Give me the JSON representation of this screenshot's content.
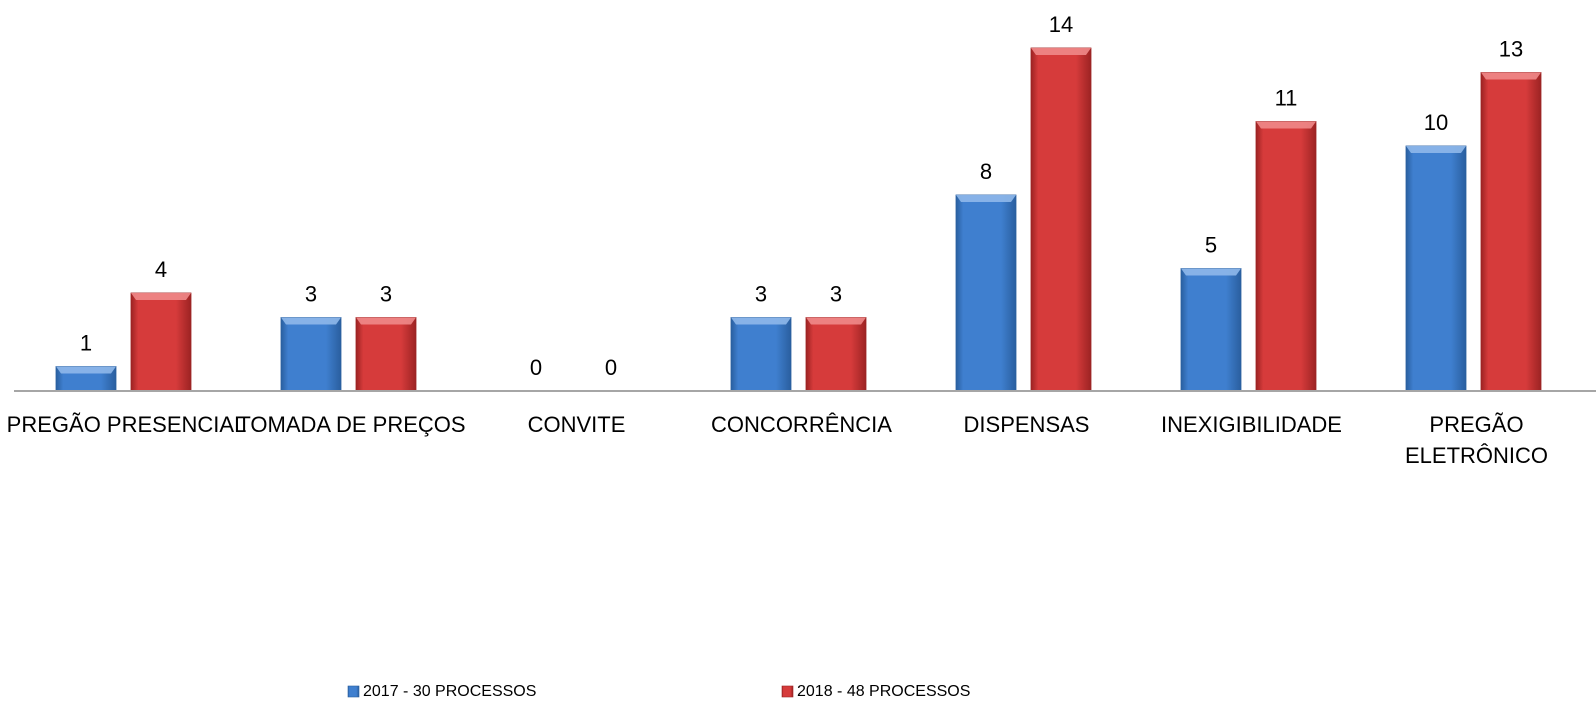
{
  "chart_data": {
    "type": "bar",
    "title": "",
    "xlabel": "",
    "ylabel": "",
    "ylim": [
      0,
      14
    ],
    "grid": false,
    "legend_position": "bottom",
    "categories": [
      [
        "PREGÃO PRESENCIAL"
      ],
      [
        "TOMADA DE PREÇOS"
      ],
      [
        "CONVITE"
      ],
      [
        "CONCORRÊNCIA"
      ],
      [
        "DISPENSAS"
      ],
      [
        "INEXIGIBILIDADE"
      ],
      [
        "PREGÃO",
        "ELETRÔNICO"
      ]
    ],
    "series": [
      {
        "name": "2017 - 30 PROCESSOS",
        "values": [
          1,
          3,
          0,
          3,
          8,
          5,
          10
        ],
        "color": "#3f7fcf",
        "color_dark": "#2a5f9f",
        "color_light": "#8fb8ea"
      },
      {
        "name": "2018 - 48 PROCESSOS",
        "values": [
          4,
          3,
          0,
          3,
          14,
          11,
          13
        ],
        "color": "#d63b3b",
        "color_dark": "#9c2323",
        "color_light": "#ef8a8a"
      }
    ]
  }
}
